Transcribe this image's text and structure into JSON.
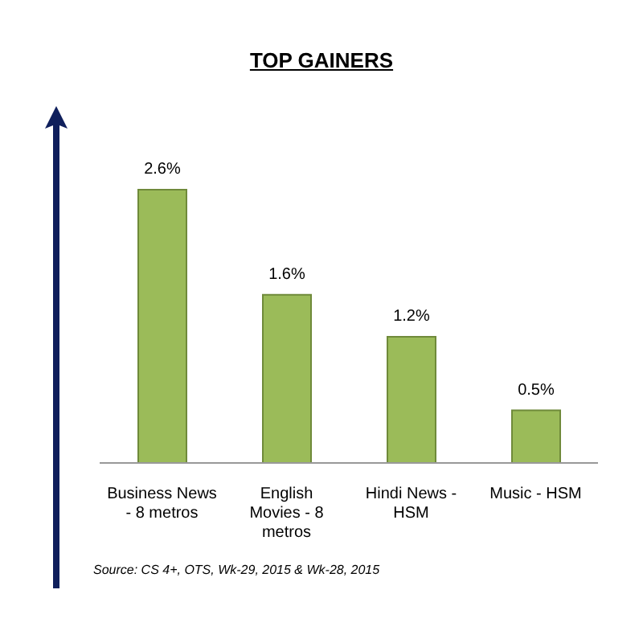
{
  "chart_data": {
    "type": "bar",
    "title": "TOP GAINERS",
    "categories": [
      "Business News - 8 metros",
      "English Movies - 8 metros",
      "Hindi News - HSM",
      "Music - HSM"
    ],
    "values": [
      2.6,
      1.6,
      1.2,
      0.5
    ],
    "value_labels": [
      "2.6%",
      "1.6%",
      "1.2%",
      "0.5%"
    ],
    "color": "#9bbb59",
    "annotations": [
      "Source: CS 4+,  OTS, Wk-29, 2015 & Wk-28, 2015"
    ]
  }
}
